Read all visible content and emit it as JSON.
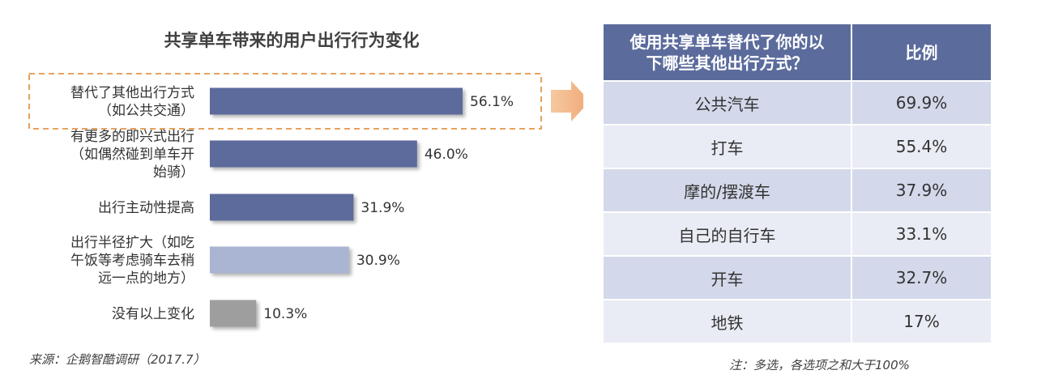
{
  "chart_data": {
    "type": "bar",
    "orientation": "horizontal",
    "title": "共享单车带来的用户出行行为变化",
    "categories": [
      [
        "替代了其他出行方式",
        "（如公共交通）"
      ],
      [
        "有更多的即兴式出行",
        "（如偶然碰到单车开",
        "始骑）"
      ],
      [
        "出行主动性提高"
      ],
      [
        "出行半径扩大（如吃",
        "午饭等考虑骑车去稍",
        "远一点的地方）"
      ],
      [
        "没有以上变化"
      ]
    ],
    "values": [
      56.1,
      46.0,
      31.9,
      30.9,
      10.3
    ],
    "value_labels": [
      "56.1%",
      "46.0%",
      "31.9%",
      "30.9%",
      "10.3%"
    ],
    "colors": [
      "#5b6b9c",
      "#5b6b9c",
      "#5b6b9c",
      "#a9b5d3",
      "#9e9e9e"
    ],
    "xlim": [
      0,
      56.1
    ],
    "highlighted_index": 0,
    "highlight_color": "#e8a15c",
    "grid": false
  },
  "title": "共享单车带来的用户出行行为变化",
  "source": "来源：企鹅智酷调研（2017.7）",
  "table": {
    "headers": [
      "使用共享单车替代了你的以下哪些其他出行方式？",
      "比例"
    ],
    "header_lines": [
      "使用共享单车替代了你的以",
      "下哪些其他出行方式？"
    ],
    "rows": [
      {
        "method": "公共汽车",
        "ratio": "69.9%"
      },
      {
        "method": "打车",
        "ratio": "55.4%"
      },
      {
        "method": "摩的/摆渡车",
        "ratio": "37.9%"
      },
      {
        "method": "自己的自行车",
        "ratio": "33.1%"
      },
      {
        "method": "开车",
        "ratio": "32.7%"
      },
      {
        "method": "地铁",
        "ratio": "17%"
      }
    ],
    "header_color": "#5b6b9c",
    "row_colors": [
      "#d3d9ea",
      "#e9ecf4"
    ]
  },
  "note": "注：多选，各选项之和大于100%"
}
